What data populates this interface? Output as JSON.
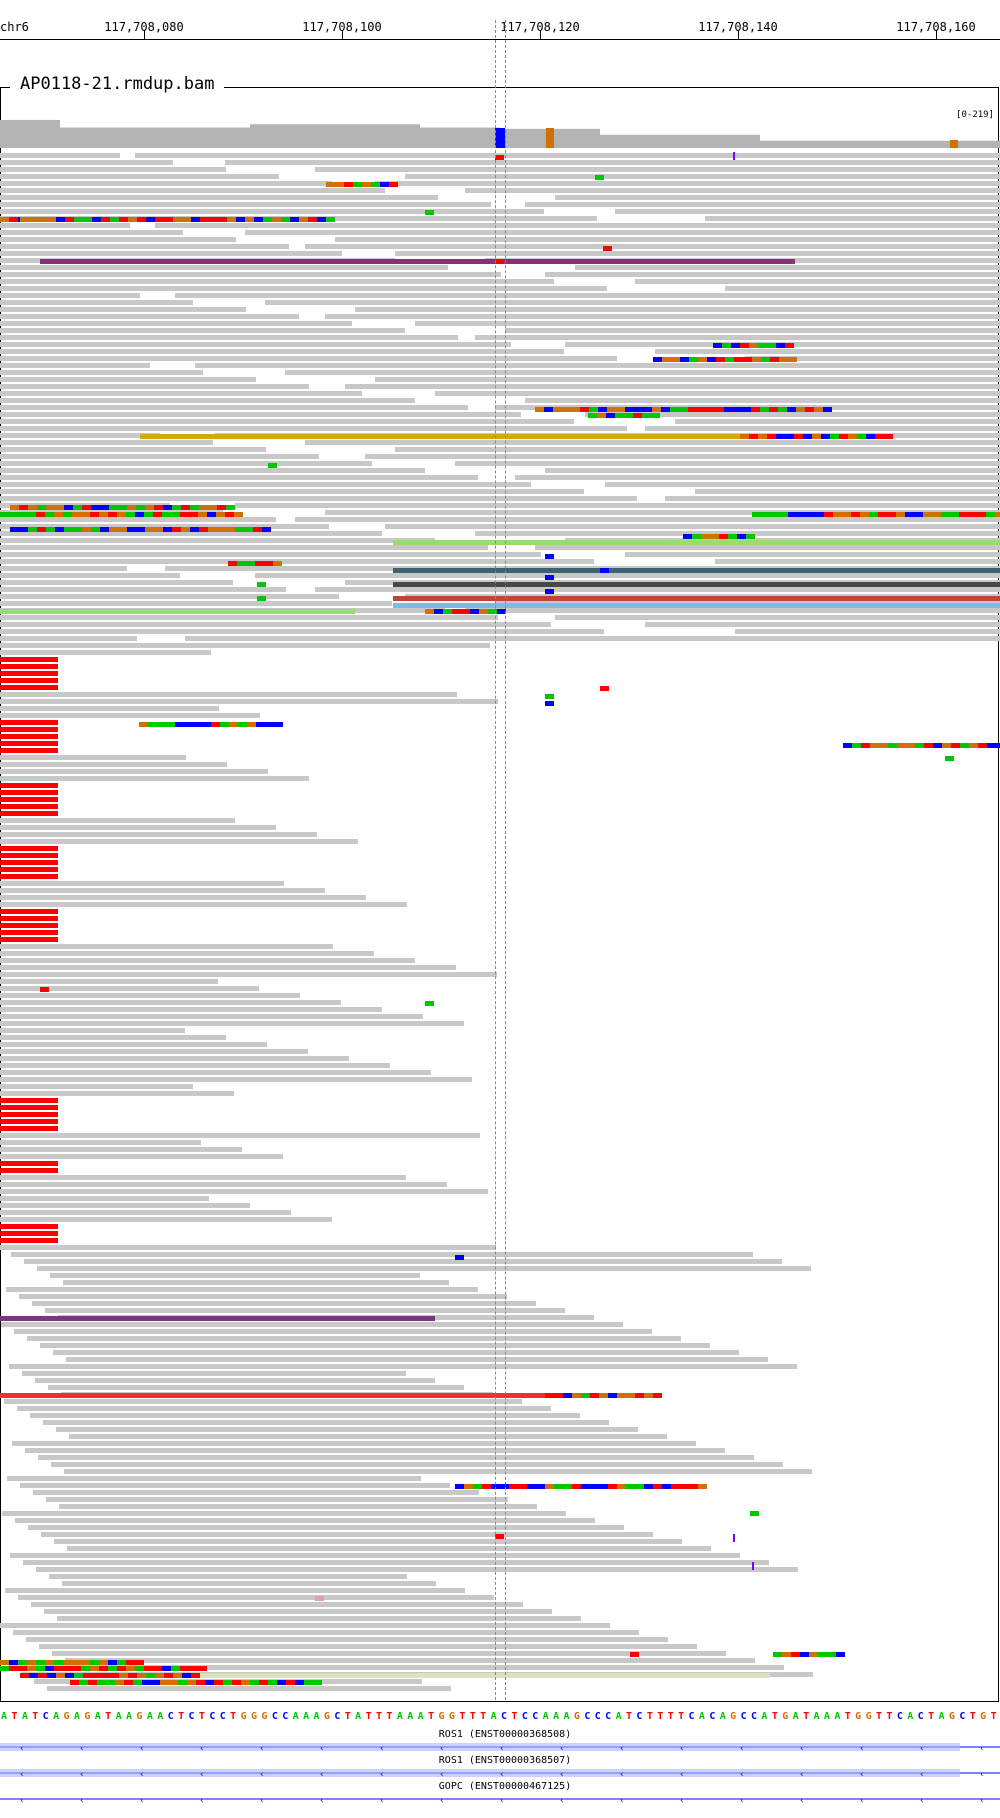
{
  "ruler": {
    "chromosome": "chr6",
    "ticks": [
      "117,708,080",
      "117,708,100",
      "117,708,120",
      "117,708,140",
      "117,708,160"
    ]
  },
  "track": {
    "name": "AP0118-21.rmdup.bam",
    "coverage_range": "[0-219]"
  },
  "sequence": "ATATCAGAGATAAGAACTCTCCTGGGCCAAAGCTATTTAAATGGTTTACTCCAAAGCCCATCTTTTCACAGCCATGATAAATGGTTCACTAGCTGT",
  "genes": [
    {
      "label": "ROS1 (ENST00000368508)"
    },
    {
      "label": "ROS1 (ENST00000368507)"
    },
    {
      "label": "GOPC (ENST00000467125)"
    }
  ],
  "colors": {
    "read": "#c8c8c8",
    "A": "#00c800",
    "C": "#0000ff",
    "G": "#d17105",
    "T": "#ff0000",
    "insertion": "#8000ff",
    "gene": "#0000ff"
  }
}
